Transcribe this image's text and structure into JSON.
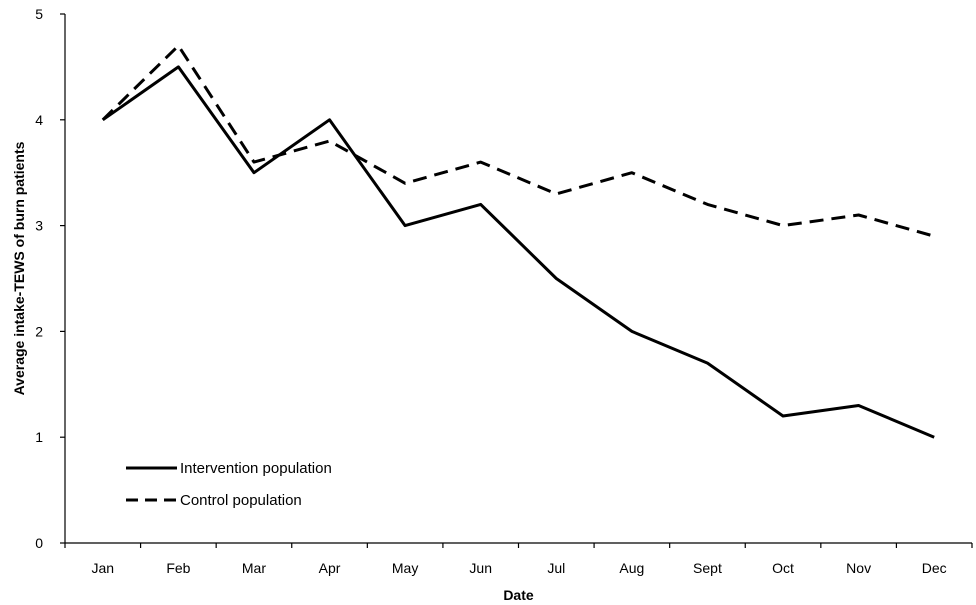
{
  "chart_data": {
    "type": "line",
    "title": "",
    "xlabel": "Date",
    "ylabel": "Average intake-TEWS of burn patients",
    "categories": [
      "Jan",
      "Feb",
      "Mar",
      "Apr",
      "May",
      "Jun",
      "Jul",
      "Aug",
      "Sept",
      "Oct",
      "Nov",
      "Dec"
    ],
    "ylim": [
      0,
      5
    ],
    "yticks": [
      0,
      1,
      2,
      3,
      4,
      5
    ],
    "grid": false,
    "legend_position": "bottom-left",
    "series": [
      {
        "name": "Intervention population",
        "style": "solid",
        "color": "#000000",
        "values": [
          4.0,
          4.5,
          3.5,
          4.0,
          3.0,
          3.2,
          2.5,
          2.0,
          1.7,
          1.2,
          1.3,
          1.0
        ]
      },
      {
        "name": "Control population",
        "style": "dashed",
        "color": "#000000",
        "values": [
          4.0,
          4.7,
          3.6,
          3.8,
          3.4,
          3.6,
          3.3,
          3.5,
          3.2,
          3.0,
          3.1,
          2.9
        ]
      }
    ]
  }
}
